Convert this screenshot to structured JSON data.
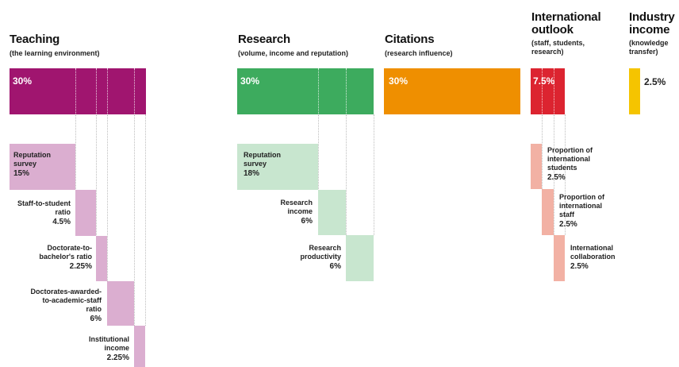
{
  "colors": {
    "teaching": "#a0156f",
    "teaching_light": "#dbaed0",
    "research": "#3dab5e",
    "research_light": "#c8e6cf",
    "citations": "#ef8f00",
    "international": "#dc2430",
    "international_light": "#f2b1a4",
    "industry": "#f5c400"
  },
  "pillars": {
    "teaching": {
      "title": "Teaching",
      "subtitle": "(the learning environment)",
      "weight": "30%"
    },
    "research": {
      "title": "Research",
      "subtitle": "(volume, income and reputation)",
      "weight": "30%"
    },
    "citations": {
      "title": "Citations",
      "subtitle": "(research influence)",
      "weight": "30%"
    },
    "international": {
      "title_line1": "International",
      "title_line2": "outlook",
      "subtitle_line1": "(staff, students,",
      "subtitle_line2": "research)",
      "weight": "7.5%"
    },
    "industry": {
      "title_line1": "Industry",
      "title_line2": "income",
      "subtitle_line1": "(knowledge",
      "subtitle_line2": "transfer)",
      "weight": "2.5%"
    }
  },
  "teaching_items": [
    {
      "l1": "Reputation",
      "l2": "survey",
      "l3": "",
      "pct": "15%",
      "value": 15
    },
    {
      "l1": "Staff-to-student",
      "l2": "ratio",
      "l3": "",
      "pct": "4.5%",
      "value": 4.5
    },
    {
      "l1": "Doctorate-to-",
      "l2": "bachelor's ratio",
      "l3": "",
      "pct": "2.25%",
      "value": 2.25
    },
    {
      "l1": "Doctorates-awarded-",
      "l2": "to-academic-staff",
      "l3": "ratio",
      "pct": "6%",
      "value": 6
    },
    {
      "l1": "Institutional",
      "l2": "income",
      "l3": "",
      "pct": "2.25%",
      "value": 2.25
    }
  ],
  "research_items": [
    {
      "l1": "Reputation",
      "l2": "survey",
      "pct": "18%",
      "value": 18
    },
    {
      "l1": "Research",
      "l2": "income",
      "pct": "6%",
      "value": 6
    },
    {
      "l1": "Research",
      "l2": "productivity",
      "pct": "6%",
      "value": 6
    }
  ],
  "international_items": [
    {
      "l1": "Proportion of",
      "l2": "international",
      "l3": "students",
      "pct": "2.5%",
      "value": 2.5
    },
    {
      "l1": "Proportion of",
      "l2": "international",
      "l3": "staff",
      "pct": "2.5%",
      "value": 2.5
    },
    {
      "l1": "International",
      "l2": "collaboration",
      "l3": "",
      "pct": "2.5%",
      "value": 2.5
    }
  ]
}
